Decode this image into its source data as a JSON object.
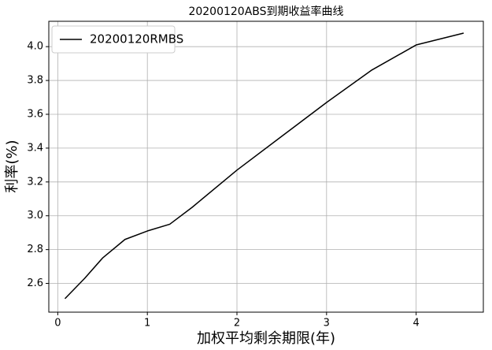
{
  "chart_data": {
    "type": "line",
    "title": "20200120ABS到期收益率曲线",
    "x_label": "加权平均剩余期限(年)",
    "y_label": "利率(%)",
    "x": [
      0.08,
      0.3,
      0.5,
      0.75,
      1.0,
      1.25,
      1.5,
      2.0,
      2.5,
      2.7,
      3.0,
      3.5,
      4.0,
      4.53
    ],
    "series": [
      {
        "name": "20200120RMBS",
        "color": "#000000",
        "values": [
          2.51,
          2.63,
          2.75,
          2.86,
          2.91,
          2.95,
          3.05,
          3.27,
          3.47,
          3.55,
          3.67,
          3.86,
          4.01,
          4.08
        ]
      }
    ],
    "xlim": [
      -0.1,
      4.75
    ],
    "ylim": [
      2.43,
      4.15
    ],
    "xticks": [
      0,
      1,
      2,
      3,
      4
    ],
    "yticks": [
      2.6,
      2.8,
      {
        "value": 3.0,
        "label": "3.0"
      },
      3.2,
      3.4,
      3.6,
      3.8,
      {
        "value": 4.0,
        "label": "4.0"
      }
    ],
    "grid": true,
    "legend": "upper-left"
  }
}
